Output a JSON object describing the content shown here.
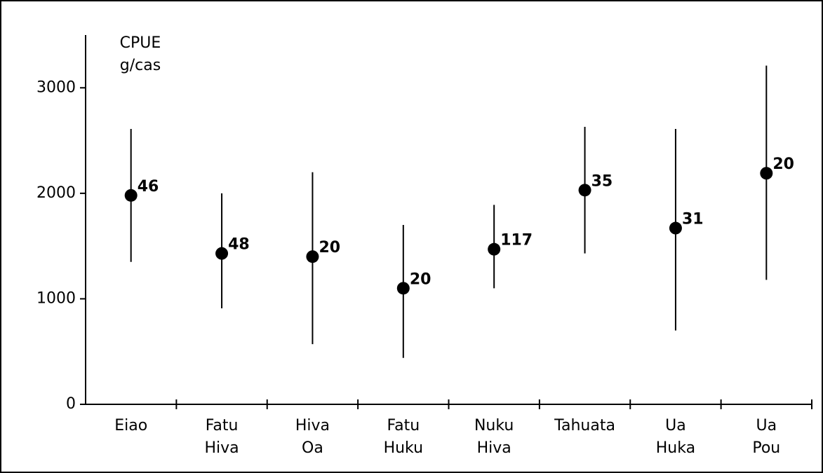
{
  "chart_data": {
    "type": "errorbar",
    "y_label": [
      "CPUE",
      "g/cas"
    ],
    "categories": [
      [
        "Eiao"
      ],
      [
        "Fatu",
        "Hiva"
      ],
      [
        "Hiva",
        "Oa"
      ],
      [
        "Fatu",
        "Huku"
      ],
      [
        "Nuku",
        "Hiva"
      ],
      [
        "Tahuata"
      ],
      [
        "Ua",
        "Huka"
      ],
      [
        "Ua",
        "Pou"
      ]
    ],
    "values": [
      1980,
      1430,
      1400,
      1100,
      1470,
      2030,
      1670,
      2190
    ],
    "low": [
      1350,
      910,
      570,
      440,
      1100,
      1430,
      700,
      1180
    ],
    "high": [
      2610,
      2000,
      2200,
      1700,
      1890,
      2630,
      2610,
      3210
    ],
    "n_labels": [
      46,
      48,
      20,
      20,
      117,
      35,
      31,
      20
    ],
    "color": "#000000",
    "ylim": [
      0,
      3500
    ],
    "yticks": [
      0,
      1000,
      2000,
      3000
    ],
    "grid": false
  }
}
